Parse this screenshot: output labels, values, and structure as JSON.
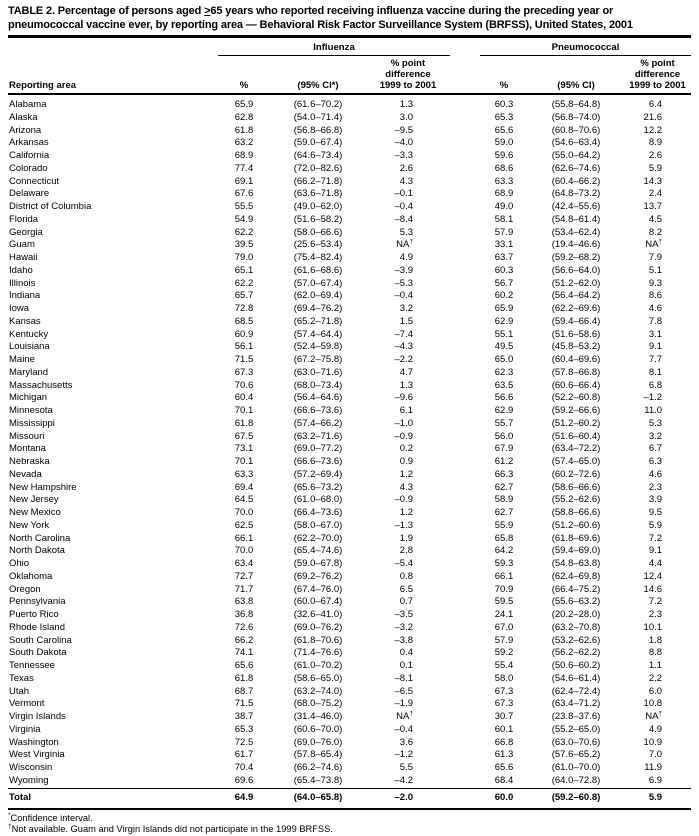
{
  "title": {
    "pre": "TABLE 2. Percentage of persons aged ",
    "geq": ">",
    "post": "65 years who reported receiving influenza vaccine during the preceding year or pneumococcal vaccine ever, by reporting area — Behavioral Risk Factor Surveillance System (BRFSS), United States, 2001"
  },
  "header": {
    "reporting_area": "Reporting area",
    "groups": {
      "influenza": "Influenza",
      "pneumococcal": "Pneumococcal"
    },
    "sub": {
      "pct": "%",
      "flu_ci": "(95% CI*)",
      "pn_ci": "(95% CI)",
      "diff_lines": [
        "% point",
        "difference",
        "1999 to 2001"
      ]
    }
  },
  "table": {
    "rows": [
      {
        "area": "Alabama",
        "flu_pct": "65.9",
        "flu_ci": "(61.6–70.2)",
        "flu_diff": "1.3",
        "pn_pct": "60.3",
        "pn_ci": "(55.8–64.8)",
        "pn_diff": "6.4"
      },
      {
        "area": "Alaska",
        "flu_pct": "62.8",
        "flu_ci": "(54.0–71.4)",
        "flu_diff": "3.0",
        "pn_pct": "65.3",
        "pn_ci": "(56.8–74.0)",
        "pn_diff": "21.6"
      },
      {
        "area": "Arizona",
        "flu_pct": "61.8",
        "flu_ci": "(56.8–66.8)",
        "flu_diff": "–9.5",
        "pn_pct": "65.6",
        "pn_ci": "(60.8–70.6)",
        "pn_diff": "12.2"
      },
      {
        "area": "Arkansas",
        "flu_pct": "63.2",
        "flu_ci": "(59.0–67.4)",
        "flu_diff": "–4.0",
        "pn_pct": "59.0",
        "pn_ci": "(54.6–63.4)",
        "pn_diff": "8.9"
      },
      {
        "area": "California",
        "flu_pct": "68.9",
        "flu_ci": "(64.6–73.4)",
        "flu_diff": "–3.3",
        "pn_pct": "59.6",
        "pn_ci": "(55.0–64.2)",
        "pn_diff": "2.6"
      },
      {
        "area": "Colorado",
        "flu_pct": "77.4",
        "flu_ci": "(72.0–82.6)",
        "flu_diff": "2.6",
        "pn_pct": "68.6",
        "pn_ci": "(62.6–74.6)",
        "pn_diff": "5.9"
      },
      {
        "area": "Connecticut",
        "flu_pct": "69.1",
        "flu_ci": "(66.2–71.8)",
        "flu_diff": "4.3",
        "pn_pct": "63.3",
        "pn_ci": "(60.4–66.2)",
        "pn_diff": "14.3"
      },
      {
        "area": "Delaware",
        "flu_pct": "67.6",
        "flu_ci": "(63.6–71.8)",
        "flu_diff": "–0.1",
        "pn_pct": "68.9",
        "pn_ci": "(64.8–73.2)",
        "pn_diff": "2.4"
      },
      {
        "area": "District of Columbia",
        "flu_pct": "55.5",
        "flu_ci": "(49.0–62.0)",
        "flu_diff": "–0.4",
        "pn_pct": "49.0",
        "pn_ci": "(42.4–55.6)",
        "pn_diff": "13.7"
      },
      {
        "area": "Florida",
        "flu_pct": "54.9",
        "flu_ci": "(51.6–58.2)",
        "flu_diff": "–8.4",
        "pn_pct": "58.1",
        "pn_ci": "(54.8–61.4)",
        "pn_diff": "4.5"
      },
      {
        "area": "Georgia",
        "flu_pct": "62.2",
        "flu_ci": "(58.0–66.6)",
        "flu_diff": "5.3",
        "pn_pct": "57.9",
        "pn_ci": "(53.4–62.4)",
        "pn_diff": "8.2"
      },
      {
        "area": "Guam",
        "flu_pct": "39.5",
        "flu_ci": "(25.6–53.4)",
        "flu_diff": "NA†",
        "pn_pct": "33.1",
        "pn_ci": "(19.4–46.6)",
        "pn_diff": "NA†"
      },
      {
        "area": "Hawaii",
        "flu_pct": "79.0",
        "flu_ci": "(75.4–82.4)",
        "flu_diff": "4.9",
        "pn_pct": "63.7",
        "pn_ci": "(59.2–68.2)",
        "pn_diff": "7.9"
      },
      {
        "area": "Idaho",
        "flu_pct": "65.1",
        "flu_ci": "(61.6–68.6)",
        "flu_diff": "–3.9",
        "pn_pct": "60.3",
        "pn_ci": "(56.6–64.0)",
        "pn_diff": "5.1"
      },
      {
        "area": "Illinois",
        "flu_pct": "62.2",
        "flu_ci": "(57.0–67.4)",
        "flu_diff": "–5.3",
        "pn_pct": "56.7",
        "pn_ci": "(51.2–62.0)",
        "pn_diff": "9.3"
      },
      {
        "area": "Indiana",
        "flu_pct": "65.7",
        "flu_ci": "(62.0–69.4)",
        "flu_diff": "–0.4",
        "pn_pct": "60.2",
        "pn_ci": "(56.4–64.2)",
        "pn_diff": "8.6"
      },
      {
        "area": "Iowa",
        "flu_pct": "72.8",
        "flu_ci": "(69.4–76.2)",
        "flu_diff": "3.2",
        "pn_pct": "65.9",
        "pn_ci": "(62.2–69.6)",
        "pn_diff": "4.6"
      },
      {
        "area": "Kansas",
        "flu_pct": "68.5",
        "flu_ci": "(65.2–71.8)",
        "flu_diff": "1.5",
        "pn_pct": "62.9",
        "pn_ci": "(59.4–66.4)",
        "pn_diff": "7.8"
      },
      {
        "area": "Kentucky",
        "flu_pct": "60.9",
        "flu_ci": "(57.4–64.4)",
        "flu_diff": "–7.4",
        "pn_pct": "55.1",
        "pn_ci": "(51.6–58.6)",
        "pn_diff": "3.1"
      },
      {
        "area": "Louisiana",
        "flu_pct": "56.1",
        "flu_ci": "(52.4–59.8)",
        "flu_diff": "–4.3",
        "pn_pct": "49.5",
        "pn_ci": "(45.8–53.2)",
        "pn_diff": "9.1"
      },
      {
        "area": "Maine",
        "flu_pct": "71.5",
        "flu_ci": "(67.2–75.8)",
        "flu_diff": "–2.2",
        "pn_pct": "65.0",
        "pn_ci": "(60.4–69.6)",
        "pn_diff": "7.7"
      },
      {
        "area": "Maryland",
        "flu_pct": "67.3",
        "flu_ci": "(63.0–71.6)",
        "flu_diff": "4.7",
        "pn_pct": "62.3",
        "pn_ci": "(57.8–66.8)",
        "pn_diff": "8.1"
      },
      {
        "area": "Massachusetts",
        "flu_pct": "70.6",
        "flu_ci": "(68.0–73.4)",
        "flu_diff": "1.3",
        "pn_pct": "63.5",
        "pn_ci": "(60.6–66.4)",
        "pn_diff": "6.8"
      },
      {
        "area": "Michigan",
        "flu_pct": "60.4",
        "flu_ci": "(56.4–64.6)",
        "flu_diff": "–9.6",
        "pn_pct": "56.6",
        "pn_ci": "(52.2–60.8)",
        "pn_diff": "–1.2"
      },
      {
        "area": "Minnesota",
        "flu_pct": "70.1",
        "flu_ci": "(66.6–73.6)",
        "flu_diff": "6.1",
        "pn_pct": "62.9",
        "pn_ci": "(59.2–66.6)",
        "pn_diff": "11.0"
      },
      {
        "area": "Mississippi",
        "flu_pct": "61.8",
        "flu_ci": "(57.4–66.2)",
        "flu_diff": "–1.0",
        "pn_pct": "55.7",
        "pn_ci": "(51.2–60.2)",
        "pn_diff": "5.3"
      },
      {
        "area": "Missouri",
        "flu_pct": "67.5",
        "flu_ci": "(63.2–71.6)",
        "flu_diff": "–0.9",
        "pn_pct": "56.0",
        "pn_ci": "(51.6–60.4)",
        "pn_diff": "3.2"
      },
      {
        "area": "Montana",
        "flu_pct": "73.1",
        "flu_ci": "(69.0–77.2)",
        "flu_diff": "0.2",
        "pn_pct": "67.9",
        "pn_ci": "(63.4–72.2)",
        "pn_diff": "6.7"
      },
      {
        "area": "Nebraska",
        "flu_pct": "70.1",
        "flu_ci": "(66.6–73.6)",
        "flu_diff": "0.9",
        "pn_pct": "61.2",
        "pn_ci": "(57.4–65.0)",
        "pn_diff": "6.3"
      },
      {
        "area": "Nevada",
        "flu_pct": "63.3",
        "flu_ci": "(57.2–69.4)",
        "flu_diff": "1.2",
        "pn_pct": "66.3",
        "pn_ci": "(60.2–72.6)",
        "pn_diff": "4.6"
      },
      {
        "area": "New Hampshire",
        "flu_pct": "69.4",
        "flu_ci": "(65.6–73.2)",
        "flu_diff": "4.3",
        "pn_pct": "62.7",
        "pn_ci": "(58.6–66.6)",
        "pn_diff": "2.3"
      },
      {
        "area": "New Jersey",
        "flu_pct": "64.5",
        "flu_ci": "(61.0–68.0)",
        "flu_diff": "–0.9",
        "pn_pct": "58.9",
        "pn_ci": "(55.2–62.6)",
        "pn_diff": "3.9"
      },
      {
        "area": "New Mexico",
        "flu_pct": "70.0",
        "flu_ci": "(66.4–73.6)",
        "flu_diff": "1.2",
        "pn_pct": "62.7",
        "pn_ci": "(58.8–66.6)",
        "pn_diff": "9.5"
      },
      {
        "area": "New York",
        "flu_pct": "62.5",
        "flu_ci": "(58.0–67.0)",
        "flu_diff": "–1.3",
        "pn_pct": "55.9",
        "pn_ci": "(51.2–60.6)",
        "pn_diff": "5.9"
      },
      {
        "area": "North Carolina",
        "flu_pct": "66.1",
        "flu_ci": "(62.2–70.0)",
        "flu_diff": "1.9",
        "pn_pct": "65.8",
        "pn_ci": "(61.8–69.6)",
        "pn_diff": "7.2"
      },
      {
        "area": "North Dakota",
        "flu_pct": "70.0",
        "flu_ci": "(65.4–74.6)",
        "flu_diff": "2.8",
        "pn_pct": "64.2",
        "pn_ci": "(59.4–69.0)",
        "pn_diff": "9.1"
      },
      {
        "area": "Ohio",
        "flu_pct": "63.4",
        "flu_ci": "(59.0–67.8)",
        "flu_diff": "–5.4",
        "pn_pct": "59.3",
        "pn_ci": "(54.8–63.8)",
        "pn_diff": "4.4"
      },
      {
        "area": "Oklahoma",
        "flu_pct": "72.7",
        "flu_ci": "(69.2–76.2)",
        "flu_diff": "0.8",
        "pn_pct": "66.1",
        "pn_ci": "(62.4–69.8)",
        "pn_diff": "12.4"
      },
      {
        "area": "Oregon",
        "flu_pct": "71.7",
        "flu_ci": "(67.4–76.0)",
        "flu_diff": "6.5",
        "pn_pct": "70.9",
        "pn_ci": "(66.4–75.2)",
        "pn_diff": "14.6"
      },
      {
        "area": "Pennsylvania",
        "flu_pct": "63.8",
        "flu_ci": "(60.0–67.4)",
        "flu_diff": "0.7",
        "pn_pct": "59.5",
        "pn_ci": "(55.6–63.2)",
        "pn_diff": "7.2"
      },
      {
        "area": "Puerto Rico",
        "flu_pct": "36.8",
        "flu_ci": "(32.6–41.0)",
        "flu_diff": "–3.5",
        "pn_pct": "24.1",
        "pn_ci": "(20.2–28.0)",
        "pn_diff": "2.3"
      },
      {
        "area": "Rhode Island",
        "flu_pct": "72.6",
        "flu_ci": "(69.0–76.2)",
        "flu_diff": "–3.2",
        "pn_pct": "67.0",
        "pn_ci": "(63.2–70.8)",
        "pn_diff": "10.1"
      },
      {
        "area": "South Carolina",
        "flu_pct": "66.2",
        "flu_ci": "(61.8–70.6)",
        "flu_diff": "–3.8",
        "pn_pct": "57.9",
        "pn_ci": "(53.2–62.6)",
        "pn_diff": "1.8"
      },
      {
        "area": "South Dakota",
        "flu_pct": "74.1",
        "flu_ci": "(71.4–76.6)",
        "flu_diff": "0.4",
        "pn_pct": "59.2",
        "pn_ci": "(56.2–62.2)",
        "pn_diff": "8.8"
      },
      {
        "area": "Tennessee",
        "flu_pct": "65.6",
        "flu_ci": "(61.0–70.2)",
        "flu_diff": "0.1",
        "pn_pct": "55.4",
        "pn_ci": "(50.6–60.2)",
        "pn_diff": "1.1"
      },
      {
        "area": "Texas",
        "flu_pct": "61.8",
        "flu_ci": "(58.6–65.0)",
        "flu_diff": "–8.1",
        "pn_pct": "58.0",
        "pn_ci": "(54.6–61.4)",
        "pn_diff": "2.2"
      },
      {
        "area": "Utah",
        "flu_pct": "68.7",
        "flu_ci": "(63.2–74.0)",
        "flu_diff": "–6.5",
        "pn_pct": "67.3",
        "pn_ci": "(62.4–72.4)",
        "pn_diff": "6.0"
      },
      {
        "area": "Vermont",
        "flu_pct": "71.5",
        "flu_ci": "(68.0–75.2)",
        "flu_diff": "–1.9",
        "pn_pct": "67.3",
        "pn_ci": "(63.4–71.2)",
        "pn_diff": "10.8"
      },
      {
        "area": "Virgin Islands",
        "flu_pct": "38.7",
        "flu_ci": "(31.4–46.0)",
        "flu_diff": "NA†",
        "pn_pct": "30.7",
        "pn_ci": "(23.8–37.6)",
        "pn_diff": "NA†"
      },
      {
        "area": "Virginia",
        "flu_pct": "65.3",
        "flu_ci": "(60.6–70.0)",
        "flu_diff": "–0.4",
        "pn_pct": "60.1",
        "pn_ci": "(55.2–65.0)",
        "pn_diff": "4.9"
      },
      {
        "area": "Washington",
        "flu_pct": "72.5",
        "flu_ci": "(69.0–76.0)",
        "flu_diff": "3.6",
        "pn_pct": "66.8",
        "pn_ci": "(63.0–70.6)",
        "pn_diff": "10.9"
      },
      {
        "area": "West Virginia",
        "flu_pct": "61.7",
        "flu_ci": "(57.8–65.4)",
        "flu_diff": "–1.2",
        "pn_pct": "61.3",
        "pn_ci": "(57.6–65.2)",
        "pn_diff": "7.0"
      },
      {
        "area": "Wisconsin",
        "flu_pct": "70.4",
        "flu_ci": "(66.2–74.6)",
        "flu_diff": "5.5",
        "pn_pct": "65.6",
        "pn_ci": "(61.0–70.0)",
        "pn_diff": "11.9"
      },
      {
        "area": "Wyoming",
        "flu_pct": "69.6",
        "flu_ci": "(65.4–73.8)",
        "flu_diff": "–4.2",
        "pn_pct": "68.4",
        "pn_ci": "(64.0–72.8)",
        "pn_diff": "6.9"
      }
    ],
    "total": {
      "area": "Total",
      "flu_pct": "64.9",
      "flu_ci": "(64.0–65.8)",
      "flu_diff": "–2.0",
      "pn_pct": "60.0",
      "pn_ci": "(59.2–60.8)",
      "pn_diff": "5.9"
    }
  },
  "footnotes": [
    {
      "marker": "*",
      "text": "Confidence interval."
    },
    {
      "marker": "†",
      "text": "Not available. Guam and Virgin Islands did not participate in the 1999 BRFSS."
    }
  ]
}
